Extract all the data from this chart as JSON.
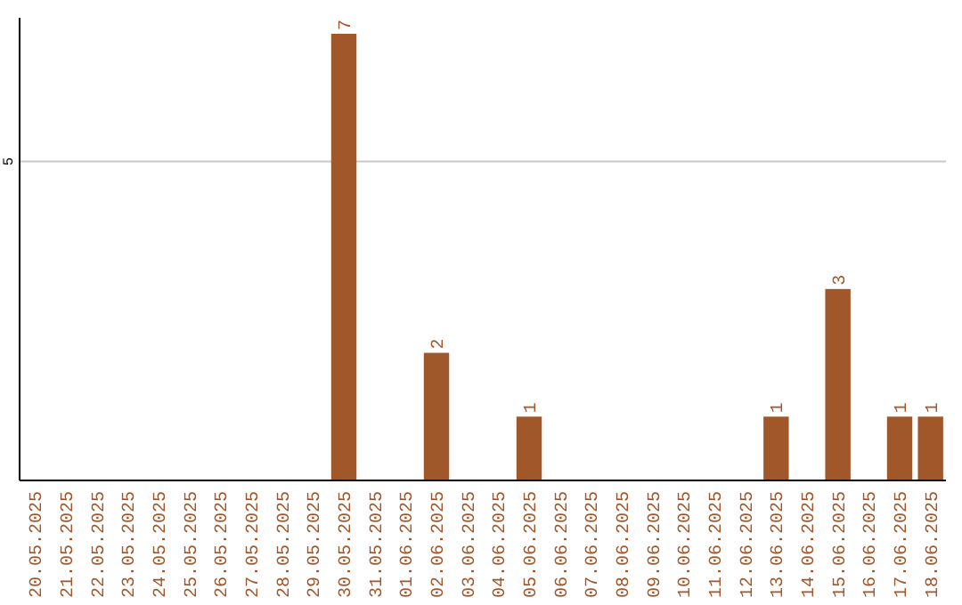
{
  "chart_data": {
    "type": "bar",
    "categories": [
      "20.05.2025",
      "21.05.2025",
      "22.05.2025",
      "23.05.2025",
      "24.05.2025",
      "25.05.2025",
      "26.05.2025",
      "27.05.2025",
      "28.05.2025",
      "29.05.2025",
      "30.05.2025",
      "31.05.2025",
      "01.06.2025",
      "02.06.2025",
      "03.06.2025",
      "04.06.2025",
      "05.06.2025",
      "06.06.2025",
      "07.06.2025",
      "08.06.2025",
      "09.06.2025",
      "10.06.2025",
      "11.06.2025",
      "12.06.2025",
      "13.06.2025",
      "14.06.2025",
      "15.06.2025",
      "16.06.2025",
      "17.06.2025",
      "18.06.2025"
    ],
    "values": [
      0,
      0,
      0,
      0,
      0,
      0,
      0,
      0,
      0,
      0,
      7,
      0,
      0,
      2,
      0,
      0,
      1,
      0,
      0,
      0,
      0,
      0,
      0,
      0,
      1,
      0,
      3,
      0,
      1,
      1
    ],
    "value_labels": [
      null,
      null,
      null,
      null,
      null,
      null,
      null,
      null,
      null,
      null,
      "7",
      null,
      null,
      "2",
      null,
      null,
      "1",
      null,
      null,
      null,
      null,
      null,
      null,
      null,
      "1",
      null,
      "3",
      null,
      "1",
      "1"
    ],
    "color": "#a0572a",
    "ylim": [
      0,
      7.25
    ],
    "yticks": [
      5
    ],
    "grid": "y"
  }
}
